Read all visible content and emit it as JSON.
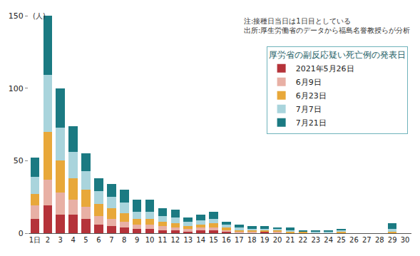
{
  "chart_data": {
    "type": "bar",
    "stacked": true,
    "y_label": "(人)",
    "notes": [
      "注:接種日当日は1日目としている",
      "出所:厚生労働省のデータから福島名誉教授らが分析"
    ],
    "legend_title": "厚労省の副反応疑い死亡例の発表日",
    "legend": "upper right",
    "grid": false,
    "categories": [
      "1日",
      "2",
      "3",
      "4",
      "5",
      "6",
      "7",
      "8",
      "9",
      "10",
      "11",
      "12",
      "13",
      "14",
      "15",
      "16",
      "17",
      "18",
      "19",
      "20",
      "21",
      "22",
      "23",
      "24",
      "25",
      "26",
      "27",
      "28",
      "29",
      "30"
    ],
    "ylim": [
      0,
      150
    ],
    "yticks": [
      0,
      50,
      100,
      150
    ],
    "series": [
      {
        "name": "2021年5月26日",
        "color": "#b5333a",
        "values": [
          10,
          19,
          13,
          13,
          10,
          6,
          5,
          4,
          3,
          3,
          2,
          2,
          1,
          2,
          2,
          1,
          0,
          0,
          1,
          0,
          0,
          0,
          0,
          0,
          0,
          0,
          0,
          0,
          0,
          0
        ]
      },
      {
        "name": "6月9日",
        "color": "#e8b0a5",
        "values": [
          9,
          18,
          15,
          10,
          8,
          6,
          5,
          4,
          3,
          3,
          3,
          2,
          2,
          2,
          2,
          1,
          1,
          1,
          0,
          1,
          0,
          0,
          0,
          0,
          0,
          0,
          0,
          0,
          0,
          0
        ]
      },
      {
        "name": "6月23日",
        "color": "#e8a83a",
        "values": [
          8,
          33,
          22,
          15,
          12,
          8,
          7,
          6,
          4,
          4,
          3,
          3,
          2,
          2,
          3,
          2,
          1,
          1,
          1,
          1,
          1,
          1,
          0,
          0,
          1,
          0,
          0,
          0,
          1,
          0
        ]
      },
      {
        "name": "7月7日",
        "color": "#a9d4dc",
        "values": [
          12,
          39,
          23,
          18,
          13,
          9,
          8,
          7,
          5,
          5,
          4,
          4,
          3,
          3,
          3,
          2,
          2,
          1,
          1,
          1,
          1,
          0,
          1,
          1,
          1,
          0,
          0,
          0,
          2,
          0
        ]
      },
      {
        "name": "7月21日",
        "color": "#1b7a82",
        "values": [
          13,
          41,
          27,
          18,
          12,
          9,
          9,
          9,
          8,
          8,
          5,
          5,
          3,
          4,
          5,
          2,
          2,
          2,
          2,
          1,
          2,
          1,
          1,
          1,
          1,
          0,
          0,
          0,
          4,
          0
        ]
      }
    ]
  }
}
